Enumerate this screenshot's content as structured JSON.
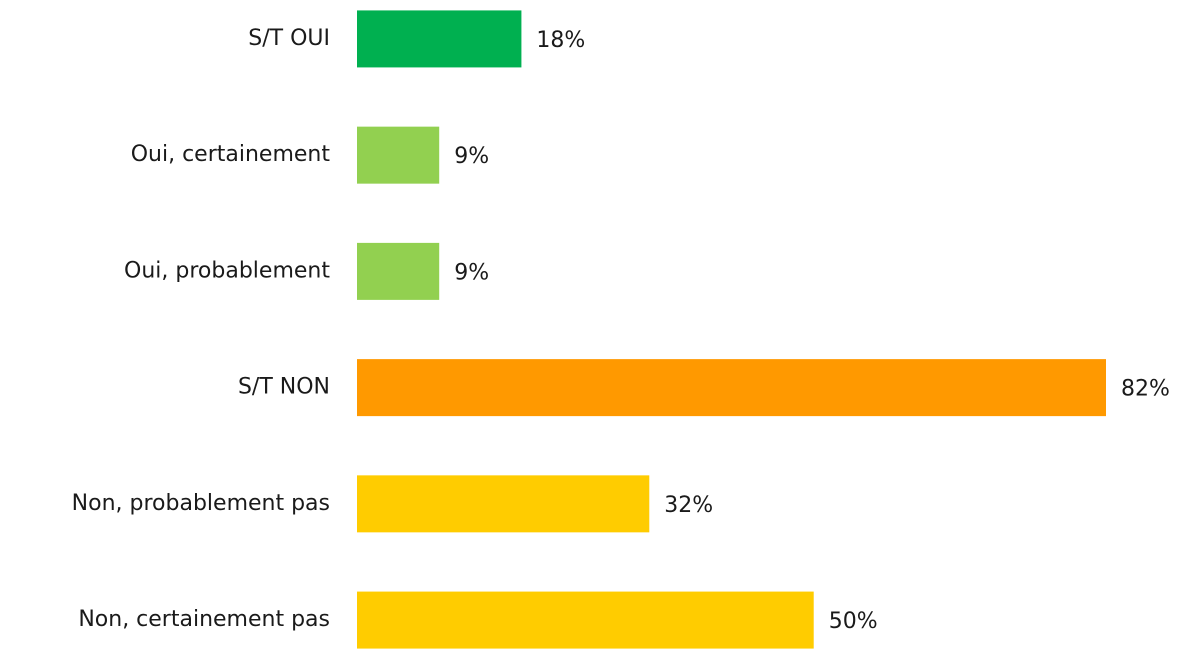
{
  "chart_data": {
    "type": "bar",
    "orientation": "horizontal",
    "categories": [
      "S/T OUI",
      "Oui, certainement",
      "Oui, probablement",
      "S/T NON",
      "Non, probablement pas",
      "Non, certainement pas"
    ],
    "values": [
      18,
      9,
      9,
      82,
      32,
      50
    ],
    "value_labels": [
      "18%",
      "9%",
      "9%",
      "82%",
      "32%",
      "50%"
    ],
    "colors": [
      "#00b050",
      "#92d050",
      "#92d050",
      "#ff9900",
      "#ffcc00",
      "#ffcc00"
    ],
    "xlim": [
      0,
      82
    ],
    "grid": false
  }
}
